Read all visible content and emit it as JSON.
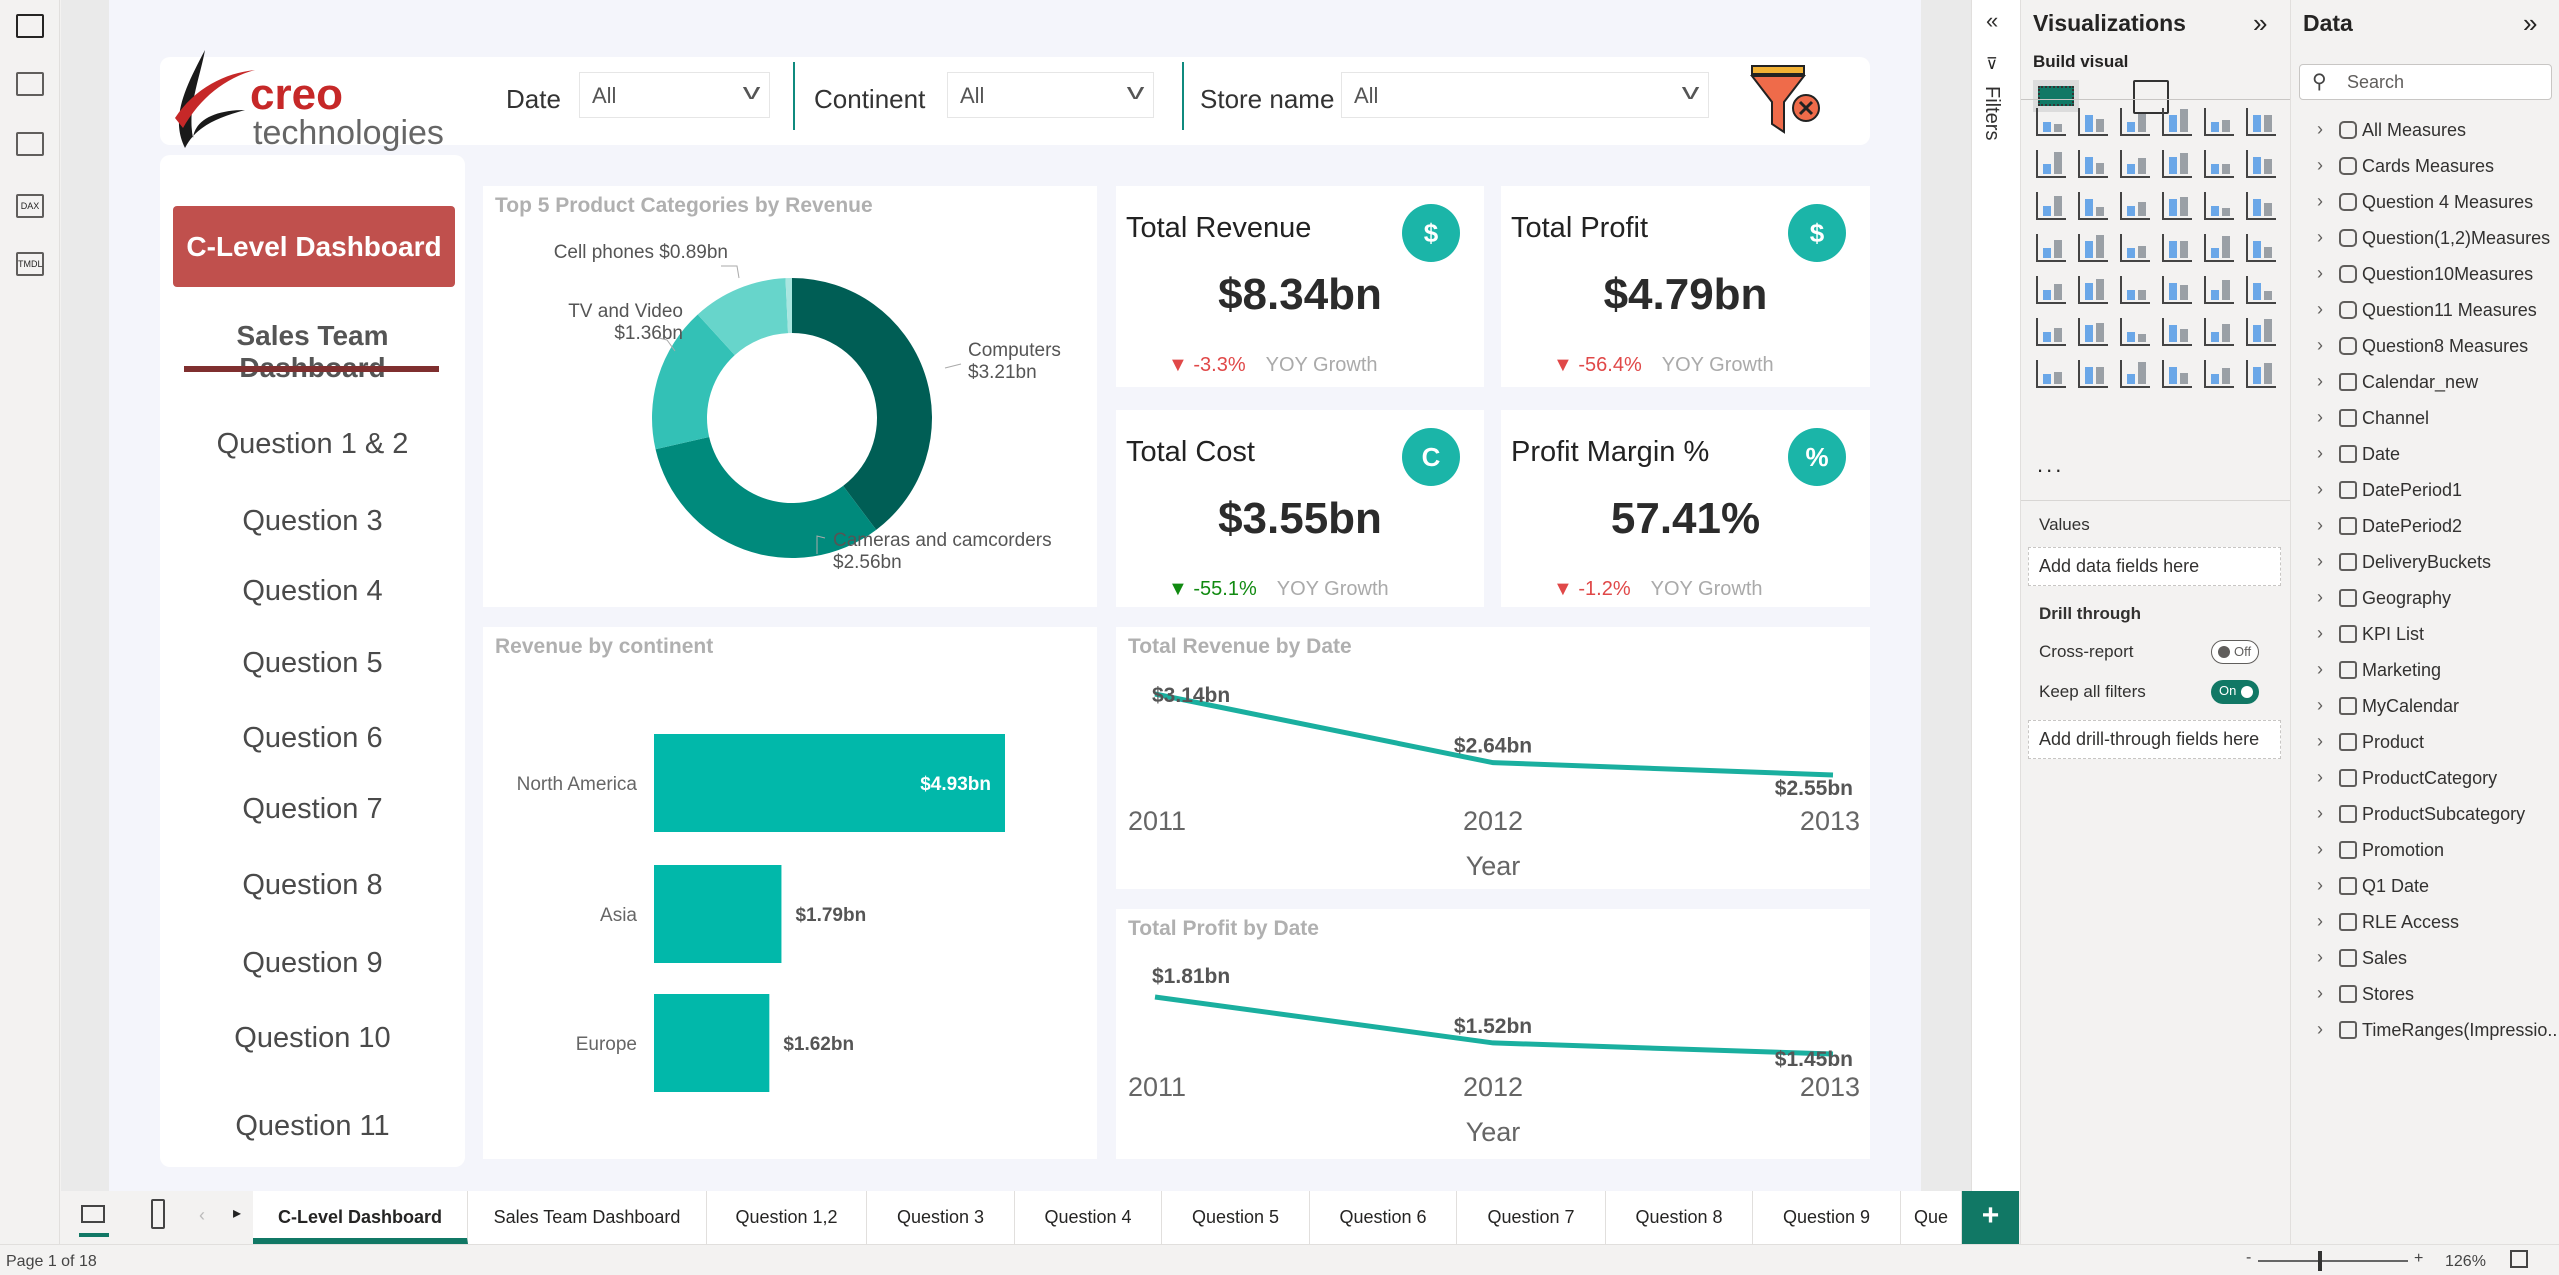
{
  "rail": {
    "icons": [
      "report-view-icon",
      "table-view-icon",
      "model-view-icon",
      "dax-query-icon",
      "tmdl-view-icon"
    ],
    "labels": [
      "",
      "",
      "",
      "DAX",
      "TMDL"
    ]
  },
  "logo": {
    "brand": "creo",
    "sub": "technologies"
  },
  "slicers": [
    {
      "label": "Date",
      "value": "All"
    },
    {
      "label": "Continent",
      "value": "All"
    },
    {
      "label": "Store name",
      "value": "All"
    }
  ],
  "nav": {
    "clevel": "C-Level Dashboard",
    "sales": "Sales Team Dashboard",
    "questions": [
      "Question 1 & 2",
      "Question 3",
      "Question 4",
      "Question 5",
      "Question 6",
      "Question 7",
      "Question 8",
      "Question 9",
      "Question 10",
      "Question 11"
    ]
  },
  "kpis": [
    {
      "title": "Total Revenue",
      "value": "$8.34bn",
      "growth": "-3.3%",
      "direction": "down",
      "label": "YOY Growth",
      "icon": "money-hand-icon",
      "glyph": "$"
    },
    {
      "title": "Total Profit",
      "value": "$4.79bn",
      "growth": "-56.4%",
      "direction": "down",
      "label": "YOY Growth",
      "icon": "money-bag-icon",
      "glyph": "$"
    },
    {
      "title": "Total Cost",
      "value": "$3.55bn",
      "growth": "-55.1%",
      "direction": "down-good",
      "label": "YOY Growth",
      "icon": "cost-chart-icon",
      "glyph": "C"
    },
    {
      "title": "Profit Margin %",
      "value": "57.41%",
      "growth": "-1.2%",
      "direction": "down",
      "label": "YOY Growth",
      "icon": "percent-dollar-icon",
      "glyph": "%"
    }
  ],
  "colors": {
    "accent": "#01b8aa",
    "line": "#1aaf9f",
    "down": "#e04848",
    "down_good": "#118a11",
    "nav_button": "#c0504d",
    "nav_underline": "#7f2f2f",
    "tab_accent": "#117865"
  },
  "chart_data": [
    {
      "type": "pie",
      "title": "Top 5 Product Categories by Revenue",
      "categories": [
        "Computers",
        "Cameras and camcorders",
        "TV and Video",
        "Cell phones",
        ""
      ],
      "values": [
        3.21,
        2.56,
        1.36,
        0.89,
        0.06
      ],
      "labels": [
        "$3.21bn",
        "$2.56bn",
        "$1.36bn",
        "$0.89bn",
        ""
      ],
      "colors": [
        "#005e55",
        "#008a7c",
        "#33c1b6",
        "#67d5cb",
        "#a9e6e0"
      ],
      "donut": true
    },
    {
      "type": "bar",
      "orientation": "horizontal",
      "title": "Revenue by continent",
      "categories": [
        "North America",
        "Asia",
        "Europe"
      ],
      "values": [
        4.93,
        1.79,
        1.62
      ],
      "labels": [
        "$4.93bn",
        "$1.79bn",
        "$1.62bn"
      ]
    },
    {
      "type": "line",
      "title": "Total Revenue by Date",
      "xlabel": "Year",
      "x": [
        "2011",
        "2012",
        "2013"
      ],
      "values": [
        3.14,
        2.64,
        2.55
      ],
      "labels": [
        "$3.14bn",
        "$2.64bn",
        "$2.55bn"
      ]
    },
    {
      "type": "line",
      "title": "Total Profit by Date",
      "xlabel": "Year",
      "x": [
        "2011",
        "2012",
        "2013"
      ],
      "values": [
        1.81,
        1.52,
        1.45
      ],
      "labels": [
        "$1.81bn",
        "$1.52bn",
        "$1.45bn"
      ]
    }
  ],
  "filters_pane": {
    "label": "Filters"
  },
  "viz": {
    "title": "Visualizations",
    "build_visual": "Build visual",
    "icons": [
      "stacked-bar-icon",
      "stacked-column-icon",
      "clustered-bar-icon",
      "clustered-column-icon",
      "100-bar-icon",
      "100-column-icon",
      "line-chart-icon",
      "area-chart-icon",
      "stacked-area-icon",
      "100-area-icon",
      "line-column-icon",
      "line-clustered-column-icon",
      "ribbon-chart-icon",
      "waterfall-icon",
      "funnel-icon",
      "scatter-icon",
      "pie-chart-icon",
      "donut-chart-icon",
      "treemap-icon",
      "map-icon",
      "filled-map-icon",
      "azure-map-icon",
      "gauge-icon",
      "card-icon",
      "multirow-card-icon",
      "kpi-icon",
      "slicer-icon",
      "table-icon",
      "matrix-icon",
      "r-visual-icon",
      "python-visual-icon",
      "key-influencers-icon",
      "decomposition-tree-icon",
      "qa-icon",
      "smart-narrative-icon",
      "metrics-icon",
      "paginated-report-icon",
      "card-new-icon",
      "slicer-new-icon",
      "arcgis-map-icon",
      "power-apps-icon",
      "power-automate-icon"
    ],
    "more": "...",
    "values_label": "Values",
    "values_placeholder": "Add data fields here",
    "drill_through": "Drill through",
    "cross_report": "Cross-report",
    "cross_report_state": "Off",
    "keep_filters": "Keep all filters",
    "keep_filters_state": "On",
    "drill_placeholder": "Add drill-through fields here"
  },
  "data_pane": {
    "title": "Data",
    "search_placeholder": "Search",
    "items": [
      {
        "name": "All Measures",
        "kind": "measure"
      },
      {
        "name": "Cards Measures",
        "kind": "measure"
      },
      {
        "name": "Question 4 Measures",
        "kind": "measure"
      },
      {
        "name": "Question(1,2)Measures",
        "kind": "measure"
      },
      {
        "name": "Question10Measures",
        "kind": "measure"
      },
      {
        "name": "Question11 Measures",
        "kind": "measure"
      },
      {
        "name": "Question8 Measures",
        "kind": "measure"
      },
      {
        "name": "Calendar_new",
        "kind": "calc-table"
      },
      {
        "name": "Channel",
        "kind": "table"
      },
      {
        "name": "Date",
        "kind": "table"
      },
      {
        "name": "DatePeriod1",
        "kind": "calc-table"
      },
      {
        "name": "DatePeriod2",
        "kind": "calc-table"
      },
      {
        "name": "DeliveryBuckets",
        "kind": "table"
      },
      {
        "name": "Geography",
        "kind": "table"
      },
      {
        "name": "KPI List",
        "kind": "calc-table"
      },
      {
        "name": "Marketing",
        "kind": "table"
      },
      {
        "name": "MyCalendar",
        "kind": "calc-table"
      },
      {
        "name": "Product",
        "kind": "table"
      },
      {
        "name": "ProductCategory",
        "kind": "table"
      },
      {
        "name": "ProductSubcategory",
        "kind": "table"
      },
      {
        "name": "Promotion",
        "kind": "table"
      },
      {
        "name": "Q1 Date",
        "kind": "calc-table"
      },
      {
        "name": "RLE Access",
        "kind": "table"
      },
      {
        "name": "Sales",
        "kind": "table"
      },
      {
        "name": "Stores",
        "kind": "table"
      },
      {
        "name": "TimeRanges(Impressio...",
        "kind": "table"
      }
    ]
  },
  "tabs": [
    "C-Level Dashboard",
    "Sales Team Dashboard",
    "Question 1,2",
    "Question 3",
    "Question 4",
    "Question 5",
    "Question 6",
    "Question 7",
    "Question 8",
    "Question 9",
    "Que"
  ],
  "active_tab": 0,
  "add_page": "+",
  "status": {
    "page": "Page 1 of 18",
    "zoom": "126%",
    "zoom_minus": "-",
    "zoom_plus": "+",
    "zoom_level_percent": 126
  }
}
